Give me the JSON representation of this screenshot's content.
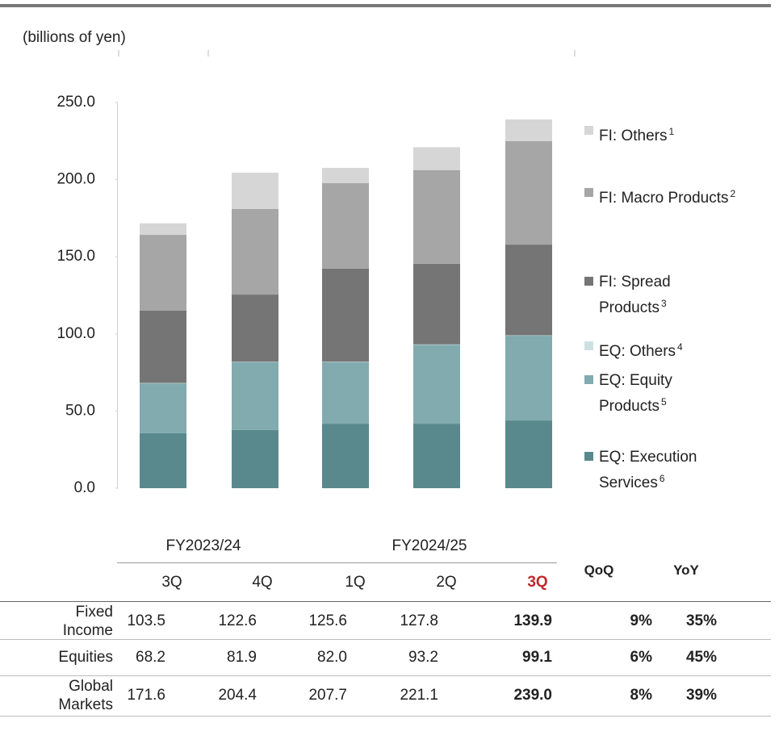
{
  "chart_data": {
    "type": "bar",
    "stacked": true,
    "unit_label": "(billions of yen)",
    "categories": [
      "3Q",
      "4Q",
      "1Q",
      "2Q",
      "3Q"
    ],
    "ylim": [
      0,
      250
    ],
    "yticks": [
      {
        "value": 0,
        "label": "0.0"
      },
      {
        "value": 50,
        "label": "50.0"
      },
      {
        "value": 100,
        "label": "100.0"
      },
      {
        "value": 150,
        "label": "150.0"
      },
      {
        "value": 200,
        "label": "200.0"
      },
      {
        "value": 250,
        "label": "250.0"
      }
    ],
    "series": [
      {
        "name": "EQ: Execution Services",
        "footnote": "6",
        "color": "#5a898d",
        "values": [
          35.6,
          37.7,
          41.8,
          41.8,
          43.9
        ]
      },
      {
        "name": "EQ: Equity Products",
        "footnote": "5",
        "color": "#81abaf",
        "values": [
          32.4,
          43.9,
          40.1,
          51.3,
          55.1
        ]
      },
      {
        "name": "EQ: Others",
        "footnote": "4",
        "color": "#cde1e2",
        "values": [
          0.2,
          0.3,
          0.1,
          0.1,
          0.1
        ]
      },
      {
        "name": "FI: Spread Products",
        "footnote": "3",
        "color": "#757575",
        "values": [
          46.9,
          43.6,
          60.3,
          52.3,
          58.8
        ]
      },
      {
        "name": "FI: Macro Products",
        "footnote": "2",
        "color": "#a6a6a6",
        "values": [
          49.1,
          55.5,
          55.4,
          60.7,
          67.0
        ]
      },
      {
        "name": "FI: Others",
        "footnote": "1",
        "color": "#d6d6d6",
        "values": [
          7.5,
          23.5,
          9.9,
          14.8,
          14.1
        ]
      }
    ]
  },
  "table": {
    "periods": [
      "FY2023/24",
      "FY2024/25"
    ],
    "change_headers": [
      "QoQ",
      "YoY"
    ],
    "highlight_color": "#c0282d",
    "rows": [
      {
        "label": "Fixed Income",
        "values": [
          "103.5",
          "122.6",
          "125.6",
          "127.8",
          "139.9"
        ],
        "changes": [
          "9%",
          "35%"
        ]
      },
      {
        "label": "Equities",
        "values": [
          "68.2",
          "81.9",
          "82.0",
          "93.2",
          "99.1"
        ],
        "changes": [
          "6%",
          "45%"
        ]
      },
      {
        "label": "Global Markets",
        "values": [
          "171.6",
          "204.4",
          "207.7",
          "221.1",
          "239.0"
        ],
        "changes": [
          "8%",
          "39%"
        ]
      }
    ]
  }
}
